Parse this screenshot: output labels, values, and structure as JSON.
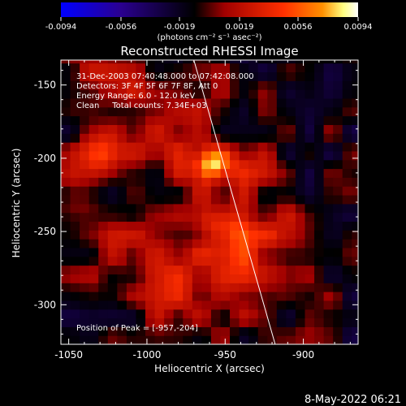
{
  "chart_data": {
    "type": "heatmap",
    "title": "Reconstructed RHESSI Image",
    "xlabel": "Heliocentric X (arcsec)",
    "ylabel": "Heliocentric Y (arcsec)",
    "xlim": [
      -1055,
      -865
    ],
    "ylim": [
      -327,
      -133
    ],
    "xticks": [
      -1050,
      -1000,
      -950,
      -900
    ],
    "xtick_labels": [
      "-1050",
      "-1000",
      "-950",
      "-900"
    ],
    "yticks": [
      -150,
      -200,
      -250,
      -300
    ],
    "ytick_labels": [
      "-150",
      "-200",
      "-250",
      "-300"
    ],
    "colorbar": {
      "range": [
        -0.0094,
        0.0094
      ],
      "ticks": [
        -0.0094,
        -0.0056,
        -0.0019,
        0.0019,
        0.0056,
        0.0094
      ],
      "tick_labels": [
        "-0.0094",
        "-0.0056",
        "-0.0019",
        "0.0019",
        "0.0056",
        "0.0094"
      ],
      "unit_label": "(photons cm⁻² s⁻¹ asec⁻²)",
      "colors": [
        "#0000ff",
        "#2a0090",
        "#000000",
        "#a00000",
        "#ff3000",
        "#ff9000",
        "#ffff80",
        "#ffffff"
      ]
    },
    "info_lines": [
      "31-Dec-2003 07:40:48.000 to 07:42:08.000",
      "Detectors: 3F 4F 5F 6F 7F 8F, Att 0",
      "Energy Range: 6.0 - 12.0 keV",
      "Clean     Total counts: 7.34E+03"
    ],
    "peak_label": "Position of Peak = [-957,-204]",
    "peak": [
      -957,
      -204
    ],
    "limb_line": {
      "x": [
        -970,
        -918
      ],
      "y": [
        -133,
        -327
      ]
    },
    "sources": [
      {
        "x": -957,
        "y": -204,
        "intensity": 0.0094,
        "sigma": 9
      },
      {
        "x": -1032,
        "y": -197,
        "intensity": 0.0055,
        "sigma": 10
      },
      {
        "x": -952,
        "y": -244,
        "intensity": 0.006,
        "sigma": 12
      },
      {
        "x": -935,
        "y": -275,
        "intensity": 0.004,
        "sigma": 18
      },
      {
        "x": -1000,
        "y": -265,
        "intensity": 0.0035,
        "sigma": 22
      },
      {
        "x": -990,
        "y": -180,
        "intensity": 0.0035,
        "sigma": 25
      },
      {
        "x": -1035,
        "y": -150,
        "intensity": 0.0028,
        "sigma": 18
      },
      {
        "x": -905,
        "y": -250,
        "intensity": 0.003,
        "sigma": 16
      },
      {
        "x": -975,
        "y": -300,
        "intensity": 0.0028,
        "sigma": 18
      },
      {
        "x": -930,
        "y": -210,
        "intensity": 0.0025,
        "sigma": 14
      },
      {
        "x": -1045,
        "y": -225,
        "intensity": 0.003,
        "sigma": 12
      }
    ]
  },
  "footer_date": "8-May-2022 06:21"
}
